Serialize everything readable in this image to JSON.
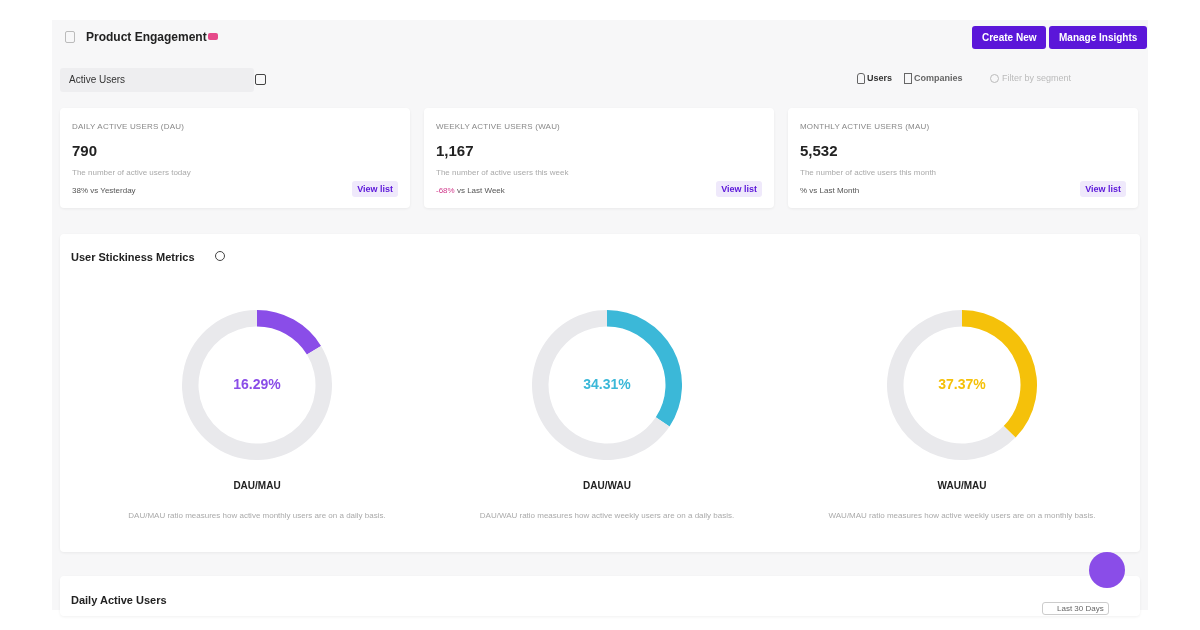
{
  "chart_data": [
    {
      "type": "other",
      "title": "Product Engagement",
      "annotations": [
        "Active Users",
        "Users",
        "Companies",
        "Filter by segment",
        "Create New",
        "Manage Insights",
        "DAILY ACTIVE USERS (DAU)",
        "790",
        "The number of active users today",
        "38% vs Yesterday",
        "View list",
        "WEEKLY ACTIVE USERS (WAU)",
        "1,167",
        "The number of active users this week",
        "-68% vs Last Week",
        "View list",
        "MONTHLY ACTIVE USERS (MAU)",
        "5,532",
        "The number of active users this month",
        "% vs Last Month",
        "View list",
        "User Stickiness Metrics",
        "Daily Active Users",
        "Last 30 Days"
      ]
    },
    {
      "type": "donut",
      "title": "DAU/MAU",
      "categories": [
        null,
        null
      ],
      "values": [
        16.29,
        83.71
      ],
      "colors": [
        "#8a4de8",
        "#e9e9ec"
      ],
      "value_labels": [
        "16.29%",
        null
      ],
      "annotations": [
        "DAU/MAU ratio measures how active monthly users are on a daily basis."
      ]
    },
    {
      "type": "donut",
      "title": "DAU/WAU",
      "categories": [
        null,
        null
      ],
      "values": [
        34.31,
        65.69
      ],
      "colors": [
        "#3bb8d8",
        "#e9e9ec"
      ],
      "value_labels": [
        "34.31%",
        null
      ],
      "annotations": [
        "DAU/WAU ratio measures how active weekly users are on a daily basis."
      ]
    },
    {
      "type": "donut",
      "title": "WAU/MAU",
      "categories": [
        null,
        null
      ],
      "values": [
        37.37,
        62.63
      ],
      "colors": [
        "#f5c10a",
        "#e9e9ec"
      ],
      "value_labels": [
        "37.37%",
        null
      ],
      "annotations": [
        "WAU/MAU ratio measures how active weekly users are on a monthly basis."
      ]
    }
  ]
}
